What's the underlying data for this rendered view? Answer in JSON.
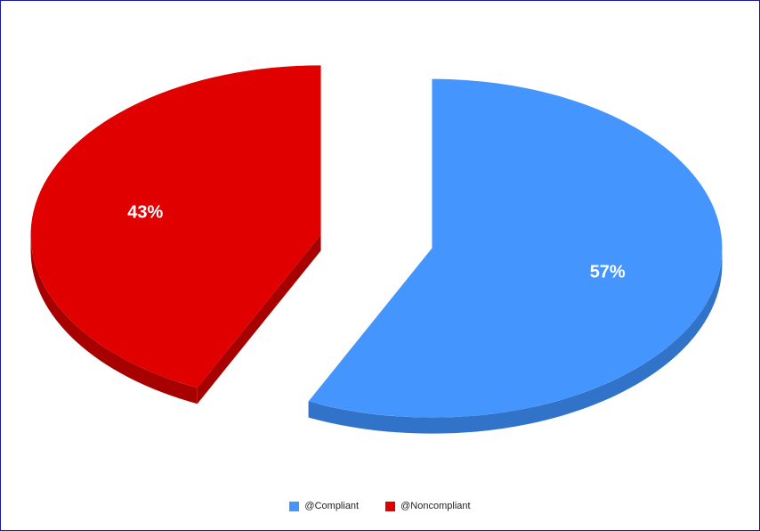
{
  "chart_data": {
    "type": "pie",
    "style": "3d-exploded",
    "slices": [
      {
        "name": "@Compliant",
        "value": 57,
        "label": "57%",
        "color": "#4496fe",
        "side_color": "#3173c9"
      },
      {
        "name": "@Noncompliant",
        "value": 43,
        "label": "43%",
        "color": "#e00000",
        "side_color": "#a60000"
      }
    ],
    "legend_position": "bottom"
  }
}
